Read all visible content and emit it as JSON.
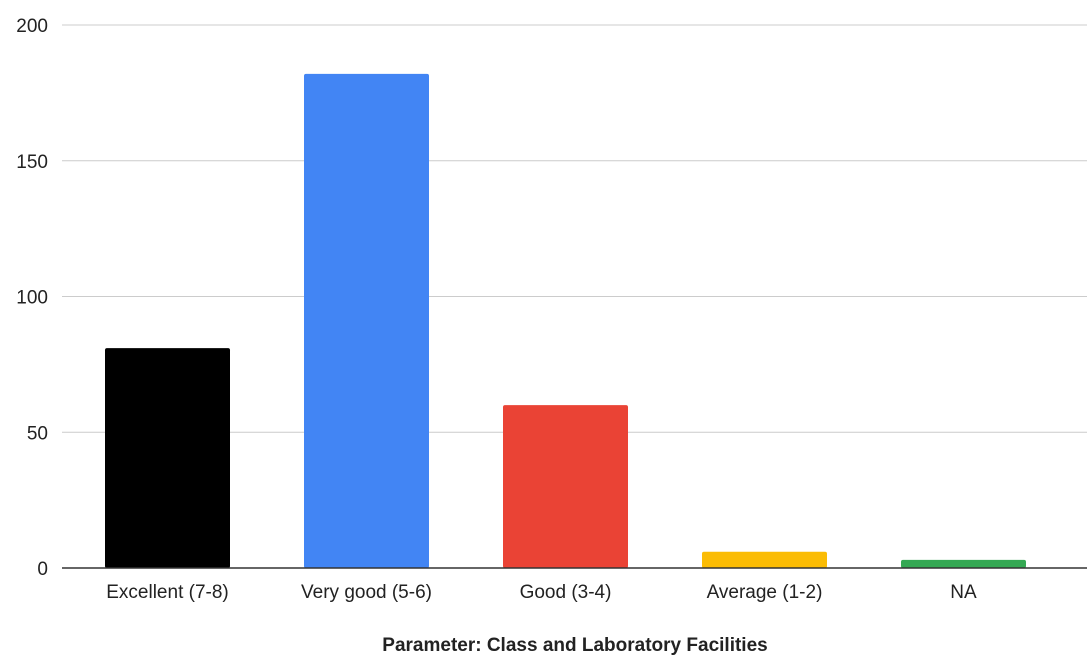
{
  "chart_data": {
    "type": "bar",
    "title": "",
    "xlabel": "Parameter: Class and Laboratory Facilities",
    "ylabel": "",
    "categories": [
      "Excellent (7-8)",
      "Very good (5-6)",
      "Good (3-4)",
      "Average (1-2)",
      "NA"
    ],
    "values": [
      81,
      182,
      60,
      6,
      3
    ],
    "colors": [
      "#000000",
      "#4285f4",
      "#ea4335",
      "#fbbc04",
      "#34a853"
    ],
    "ylim": [
      0,
      200
    ],
    "yticks": [
      "0",
      "50",
      "100",
      "150",
      "200"
    ],
    "grid": true,
    "legend": "none"
  }
}
